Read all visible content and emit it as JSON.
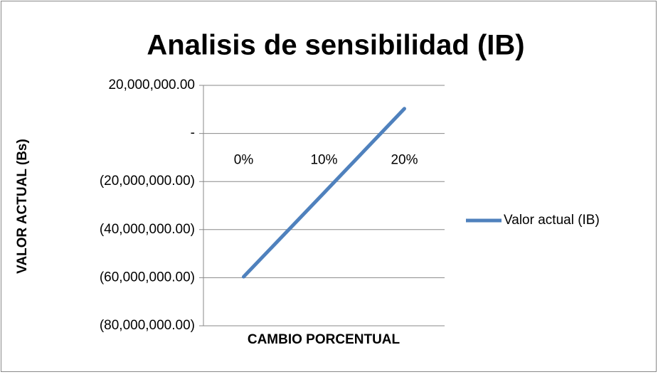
{
  "chart_data": {
    "type": "line",
    "title": "Analisis de sensibilidad (IB)",
    "xlabel": "CAMBIO PORCENTUAL",
    "ylabel": "VALOR ACTUAL (Bs)",
    "categories": [
      "0%",
      "10%",
      "20%"
    ],
    "series": [
      {
        "name": "Valor actual (IB)",
        "color": "#4f81bd",
        "values": [
          -59600000,
          -24700000,
          10300000
        ]
      }
    ],
    "ylim": [
      -80000000,
      20000000
    ],
    "yticks": [
      {
        "value": -80000000,
        "label": "(80,000,000.00)"
      },
      {
        "value": -60000000,
        "label": "(60,000,000.00)"
      },
      {
        "value": -40000000,
        "label": "(40,000,000.00)"
      },
      {
        "value": -20000000,
        "label": "(20,000,000.00)"
      },
      {
        "value": 0,
        "label": "-"
      },
      {
        "value": 20000000,
        "label": "20,000,000.00"
      }
    ],
    "grid": true,
    "legend": "right"
  }
}
